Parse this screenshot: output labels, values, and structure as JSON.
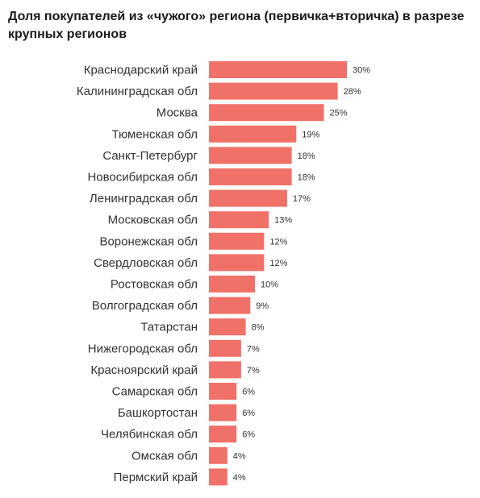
{
  "chart_data": {
    "type": "bar",
    "orientation": "horizontal",
    "title": "Доля покупателей из «чужого» региона (первичка+вторичка) в разрезе крупных регионов",
    "categories": [
      "Краснодарский край",
      "Калининградская обл",
      "Москва",
      "Тюменская обл",
      "Санкт-Петербург",
      "Новосибирская обл",
      "Ленинградская обл",
      "Московская обл",
      "Воронежская обл",
      "Свердловская обл",
      "Ростовская обл",
      "Волгоградская обл",
      "Татарстан",
      "Нижегородская обл",
      "Красноярский край",
      "Самарская обл",
      "Башкортостан",
      "Челябинская обл",
      "Омская обл",
      "Пермский край"
    ],
    "values": [
      30,
      28,
      25,
      19,
      18,
      18,
      17,
      13,
      12,
      12,
      10,
      9,
      8,
      7,
      7,
      6,
      6,
      6,
      4,
      4
    ],
    "value_labels": [
      "30%",
      "28%",
      "25%",
      "19%",
      "18%",
      "18%",
      "17%",
      "13%",
      "12%",
      "12%",
      "10%",
      "9%",
      "8%",
      "7%",
      "7%",
      "6%",
      "6%",
      "6%",
      "4%",
      "4%"
    ],
    "unit": "%",
    "bar_color": "#f07168",
    "grid": false,
    "legend": "none"
  }
}
